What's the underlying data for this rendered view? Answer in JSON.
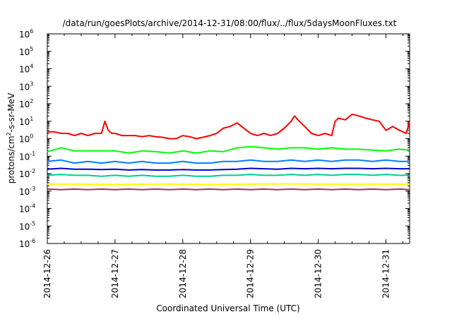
{
  "chart_data": {
    "type": "line",
    "title": "/data/run/goesPlots/archive/2014-12-31/08:00/flux/../flux/5daysMoonFluxes.txt",
    "xlabel": "Coordinated Universal Time (UTC)",
    "ylabel_parts": {
      "base": "protons/cm",
      "sup": "2",
      "rest": "-s-sr-MeV"
    },
    "y_scale": "log",
    "ylim_exp": [
      -6,
      6
    ],
    "y_ticks": [
      {
        "base": "10",
        "exp": "6",
        "value": 6
      },
      {
        "base": "10",
        "exp": "5",
        "value": 5
      },
      {
        "base": "10",
        "exp": "4",
        "value": 4
      },
      {
        "base": "10",
        "exp": "3",
        "value": 3
      },
      {
        "base": "10",
        "exp": "2",
        "value": 2
      },
      {
        "base": "10",
        "exp": "1",
        "value": 1
      },
      {
        "base": "10",
        "exp": "0",
        "value": 0
      },
      {
        "base": "10",
        "exp": "-1",
        "value": -1
      },
      {
        "base": "10",
        "exp": "-2",
        "value": -2
      },
      {
        "base": "10",
        "exp": "-3",
        "value": -3
      },
      {
        "base": "10",
        "exp": "-4",
        "value": -4
      },
      {
        "base": "10",
        "exp": "-5",
        "value": -5
      },
      {
        "base": "10",
        "exp": "-6",
        "value": -6
      }
    ],
    "x_ticks": [
      {
        "label": "2014-12-26",
        "day": 0
      },
      {
        "label": "2014-12-27",
        "day": 1
      },
      {
        "label": "2014-12-28",
        "day": 2
      },
      {
        "label": "2014-12-29",
        "day": 3
      },
      {
        "label": "2014-12-30",
        "day": 4
      },
      {
        "label": "2014-12-31",
        "day": 5
      }
    ],
    "xlim_days": [
      0,
      5.35
    ],
    "grid": false,
    "legend": "none",
    "series": [
      {
        "color": "#ff0000",
        "x": [
          0,
          0.1,
          0.2,
          0.3,
          0.4,
          0.5,
          0.6,
          0.7,
          0.8,
          0.85,
          0.9,
          0.95,
          1.0,
          1.1,
          1.2,
          1.3,
          1.4,
          1.5,
          1.6,
          1.7,
          1.8,
          1.9,
          2.0,
          2.1,
          2.2,
          2.3,
          2.4,
          2.5,
          2.6,
          2.7,
          2.8,
          2.9,
          3.0,
          3.1,
          3.2,
          3.3,
          3.4,
          3.5,
          3.6,
          3.65,
          3.7,
          3.8,
          3.9,
          4.0,
          4.1,
          4.2,
          4.25,
          4.3,
          4.4,
          4.5,
          4.6,
          4.7,
          4.8,
          4.9,
          5.0,
          5.1,
          5.2,
          5.3,
          5.35
        ],
        "y": [
          2.5,
          2.5,
          2,
          2,
          1.5,
          2,
          1.5,
          2,
          2,
          10,
          3,
          2,
          2,
          1.5,
          1.5,
          1.5,
          1.3,
          1.5,
          1.3,
          1.2,
          1,
          1,
          1.5,
          1.3,
          1,
          1.2,
          1.5,
          2,
          4,
          5,
          8,
          4,
          2,
          1.5,
          2,
          1.5,
          2,
          4,
          10,
          20,
          12,
          5,
          2,
          1.5,
          2,
          1.5,
          10,
          15,
          12,
          25,
          20,
          15,
          12,
          10,
          3,
          5,
          3,
          2,
          10
        ]
      },
      {
        "color": "#00ff00",
        "x": [
          0,
          0.2,
          0.4,
          0.6,
          0.8,
          1.0,
          1.2,
          1.4,
          1.6,
          1.8,
          2.0,
          2.2,
          2.4,
          2.6,
          2.8,
          3.0,
          3.2,
          3.4,
          3.6,
          3.8,
          4.0,
          4.2,
          4.4,
          4.6,
          4.8,
          5.0,
          5.2,
          5.35
        ],
        "y": [
          0.18,
          0.3,
          0.2,
          0.2,
          0.2,
          0.2,
          0.15,
          0.2,
          0.18,
          0.15,
          0.2,
          0.15,
          0.2,
          0.18,
          0.3,
          0.35,
          0.3,
          0.25,
          0.3,
          0.3,
          0.25,
          0.3,
          0.25,
          0.25,
          0.22,
          0.2,
          0.25,
          0.22
        ]
      },
      {
        "color": "#0080ff",
        "x": [
          0,
          0.2,
          0.4,
          0.6,
          0.8,
          1.0,
          1.2,
          1.4,
          1.6,
          1.8,
          2.0,
          2.2,
          2.4,
          2.6,
          2.8,
          3.0,
          3.2,
          3.4,
          3.6,
          3.8,
          4.0,
          4.2,
          4.4,
          4.6,
          4.8,
          5.0,
          5.2,
          5.35
        ],
        "y": [
          0.05,
          0.06,
          0.04,
          0.05,
          0.04,
          0.05,
          0.04,
          0.05,
          0.04,
          0.04,
          0.05,
          0.04,
          0.04,
          0.05,
          0.05,
          0.06,
          0.05,
          0.05,
          0.06,
          0.05,
          0.06,
          0.05,
          0.06,
          0.06,
          0.05,
          0.06,
          0.05,
          0.05
        ]
      },
      {
        "color": "#0000cc",
        "x": [
          0,
          0.2,
          0.4,
          0.6,
          0.8,
          1.0,
          1.2,
          1.4,
          1.6,
          1.8,
          2.0,
          2.2,
          2.4,
          2.6,
          2.8,
          3.0,
          3.2,
          3.4,
          3.6,
          3.8,
          4.0,
          4.2,
          4.4,
          4.6,
          4.8,
          5.0,
          5.2,
          5.35
        ],
        "y": [
          0.018,
          0.02,
          0.018,
          0.018,
          0.017,
          0.018,
          0.016,
          0.017,
          0.016,
          0.016,
          0.017,
          0.016,
          0.016,
          0.017,
          0.018,
          0.02,
          0.019,
          0.018,
          0.02,
          0.019,
          0.02,
          0.019,
          0.02,
          0.02,
          0.019,
          0.02,
          0.019,
          0.019
        ]
      },
      {
        "color": "#00cc99",
        "x": [
          0,
          0.2,
          0.4,
          0.6,
          0.8,
          1.0,
          1.2,
          1.4,
          1.6,
          1.8,
          2.0,
          2.2,
          2.4,
          2.6,
          2.8,
          3.0,
          3.2,
          3.4,
          3.6,
          3.8,
          4.0,
          4.2,
          4.4,
          4.6,
          4.8,
          5.0,
          5.2,
          5.35
        ],
        "y": [
          0.008,
          0.009,
          0.008,
          0.008,
          0.007,
          0.008,
          0.007,
          0.008,
          0.007,
          0.007,
          0.008,
          0.007,
          0.007,
          0.008,
          0.008,
          0.009,
          0.008,
          0.008,
          0.009,
          0.008,
          0.009,
          0.008,
          0.009,
          0.009,
          0.008,
          0.009,
          0.008,
          0.008
        ]
      },
      {
        "color": "#ffff00",
        "x": [
          0,
          0.5,
          1.0,
          1.5,
          2.0,
          2.5,
          3.0,
          3.5,
          4.0,
          4.5,
          5.0,
          5.35
        ],
        "y": [
          0.0025,
          0.0025,
          0.0024,
          0.0025,
          0.0025,
          0.0024,
          0.0025,
          0.0026,
          0.0025,
          0.0025,
          0.0025,
          0.0025
        ]
      },
      {
        "color": "#993366",
        "x": [
          0,
          0.2,
          0.4,
          0.6,
          0.8,
          1.0,
          1.2,
          1.4,
          1.6,
          1.8,
          2.0,
          2.2,
          2.4,
          2.6,
          2.8,
          3.0,
          3.2,
          3.4,
          3.6,
          3.8,
          4.0,
          4.2,
          4.4,
          4.6,
          4.8,
          5.0,
          5.2,
          5.35
        ],
        "y": [
          0.0013,
          0.0012,
          0.0013,
          0.0012,
          0.0013,
          0.0012,
          0.0013,
          0.0012,
          0.0013,
          0.0012,
          0.0013,
          0.0012,
          0.0013,
          0.0012,
          0.0013,
          0.0012,
          0.0013,
          0.0012,
          0.0013,
          0.0012,
          0.0013,
          0.0012,
          0.0013,
          0.0012,
          0.0013,
          0.0012,
          0.0013,
          0.0012
        ]
      }
    ]
  }
}
